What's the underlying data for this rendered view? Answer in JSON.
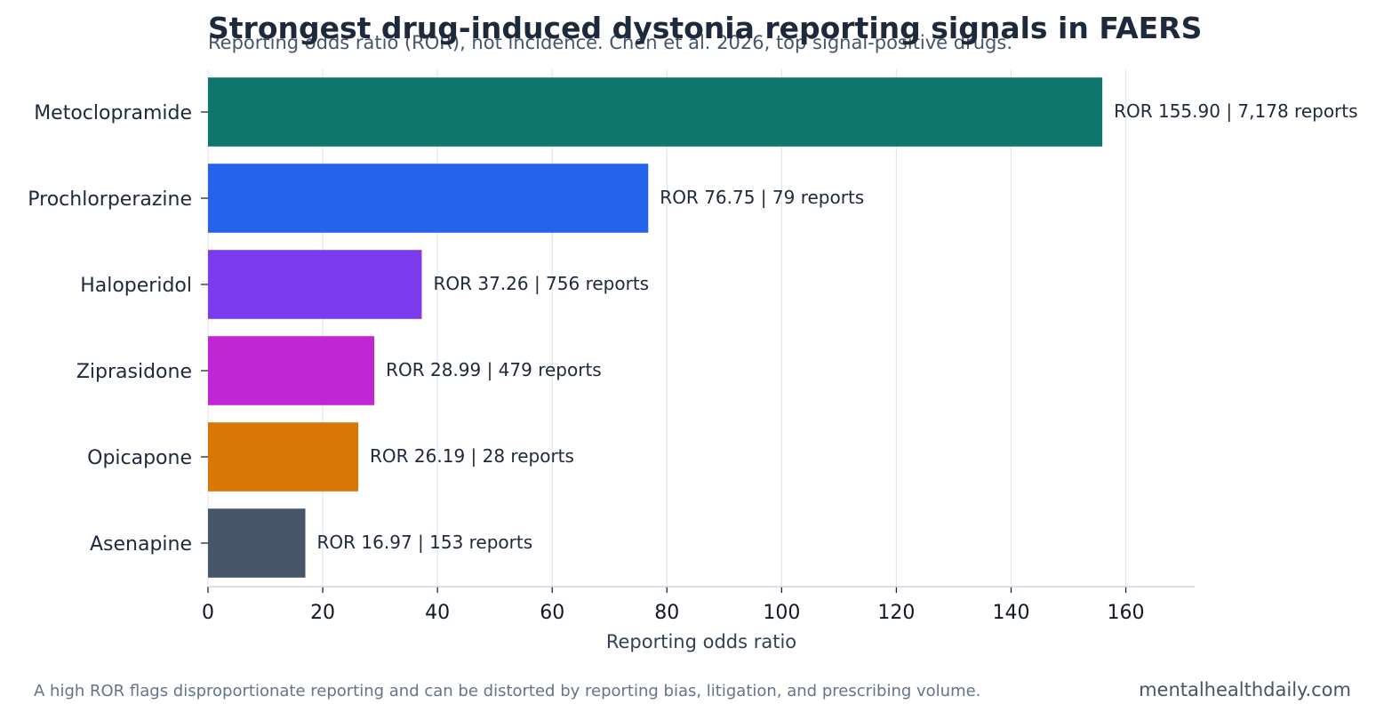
{
  "chart_data": {
    "type": "bar",
    "orientation": "horizontal",
    "title": "Strongest drug-induced dystonia reporting signals in FAERS",
    "subtitle": "Reporting odds ratio (ROR), not incidence. Chen et al. 2026, top signal-positive drugs.",
    "xlabel": "Reporting odds ratio",
    "xlim": [
      0,
      172
    ],
    "xticks": [
      0,
      20,
      40,
      60,
      80,
      100,
      120,
      140,
      160
    ],
    "grid": "vertical",
    "categories": [
      "Metoclopramide",
      "Prochlorperazine",
      "Haloperidol",
      "Ziprasidone",
      "Opicapone",
      "Asenapine"
    ],
    "values": [
      155.9,
      76.75,
      37.26,
      28.99,
      26.19,
      16.97
    ],
    "colors": [
      "#0f766e",
      "#2563eb",
      "#7c3aed",
      "#c026d3",
      "#d97706",
      "#475569"
    ],
    "data_labels": [
      "ROR 155.90 | 7,178 reports",
      "ROR 76.75 | 79 reports",
      "ROR 37.26 | 756 reports",
      "ROR 28.99 | 479 reports",
      "ROR 26.19 | 28 reports",
      "ROR 16.97 | 153 reports"
    ]
  },
  "footer": {
    "note": "A high ROR flags disproportionate reporting and can be distorted by reporting bias, litigation, and prescribing volume.",
    "brand": "mentalhealthdaily.com"
  }
}
